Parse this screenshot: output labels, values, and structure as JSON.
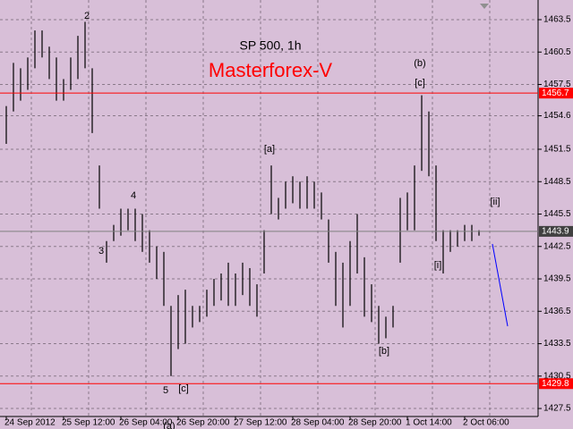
{
  "chart_data": {
    "type": "range",
    "title": "SP 500, 1h",
    "subtitle": "Masterforex-V",
    "categories": [
      "24 Sep 2012",
      null,
      null,
      null,
      null,
      null,
      null,
      null,
      "25 Sep 12:00",
      null,
      null,
      null,
      null,
      null,
      null,
      null,
      "26 Sep 04:00",
      null,
      null,
      null,
      null,
      null,
      null,
      null,
      "26 Sep 20:00",
      null,
      null,
      null,
      null,
      null,
      null,
      null,
      "27 Sep 12:00",
      null,
      null,
      null,
      null,
      null,
      null,
      null,
      "28 Sep 04:00",
      null,
      null,
      null,
      null,
      null,
      null,
      null,
      "28 Sep 20:00",
      null,
      null,
      null,
      null,
      null,
      null,
      null,
      "1 Oct 14:00",
      null,
      null,
      null,
      null,
      null,
      null,
      null,
      "2 Oct 06:00",
      null,
      null
    ],
    "series": [
      {
        "color": "#000000",
        "high": [
          1455.5,
          1459.5,
          1459,
          1460,
          1462.5,
          1462.5,
          1461,
          1460,
          1458,
          1460,
          1462,
          1463.3,
          1459,
          1450,
          1443,
          1444.5,
          1446,
          1446,
          1446,
          1445.5,
          1444,
          1442.5,
          1442,
          1437,
          1438,
          1438.5,
          1437,
          1437,
          1438.5,
          1439.5,
          1440,
          1441,
          1440,
          1441,
          1440.5,
          1439,
          1444,
          1450,
          1447,
          1448.5,
          1449,
          1448.5,
          1449,
          1448.5,
          1447.5,
          1445,
          1442,
          1441,
          1443,
          1445.5,
          1441.5,
          1439,
          1437,
          1436,
          1437,
          1447,
          1447.5,
          1450,
          1456.5,
          1455,
          1450,
          1444,
          1444,
          1444,
          1444.5,
          1444.5,
          1444
        ],
        "low": [
          1452,
          1455,
          1456,
          1457,
          1459,
          1460,
          1458,
          1456,
          1456,
          1457,
          1458,
          1459,
          1453,
          1446,
          1441,
          1443,
          1443.5,
          1444,
          1443,
          1442,
          1441,
          1439.5,
          1437,
          1430.5,
          1433,
          1433.5,
          1435,
          1435.5,
          1436,
          1437,
          1437.5,
          1437,
          1437,
          1438,
          1437,
          1436,
          1440,
          1445.5,
          1445,
          1446,
          1446.5,
          1446,
          1446,
          1446,
          1445,
          1441,
          1437,
          1435,
          1437,
          1440,
          1436,
          1435.5,
          1433.5,
          1434,
          1435,
          1441,
          1444,
          1444,
          1449.5,
          1449,
          1443,
          1440,
          1442,
          1442.5,
          1443,
          1443,
          1443.5
        ]
      }
    ],
    "ylim": [
      1426.76,
      1465.32
    ],
    "yticks": [
      1463.5,
      1460.5,
      1457.5,
      1454.6,
      1451.5,
      1448.5,
      1445.5,
      1442.5,
      1439.5,
      1436.5,
      1433.5,
      1430.5,
      1427.5
    ],
    "grid": true,
    "levels": [
      {
        "value": 1456.7,
        "color": "#ff0000"
      },
      {
        "value": 1429.8,
        "color": "#ff0000"
      },
      {
        "value": 1443.9,
        "color": "#808080"
      }
    ],
    "annotations": [
      "2",
      "3",
      "4",
      "5",
      "(a)",
      "[c]",
      "[a]",
      "[b]",
      "(b)",
      "[c]",
      "[i]",
      "[ii]"
    ]
  }
}
